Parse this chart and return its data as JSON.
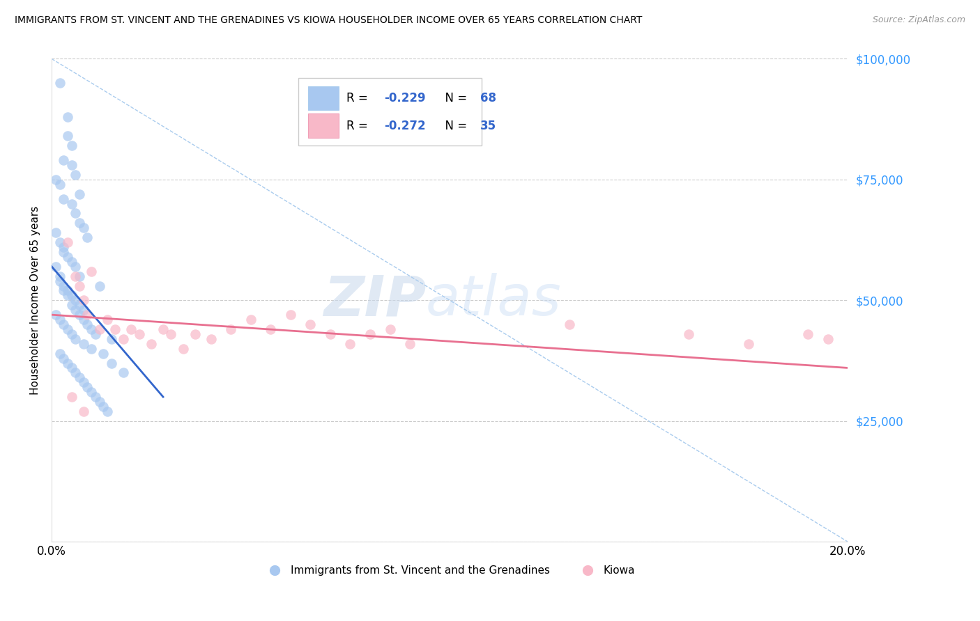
{
  "title": "IMMIGRANTS FROM ST. VINCENT AND THE GRENADINES VS KIOWA HOUSEHOLDER INCOME OVER 65 YEARS CORRELATION CHART",
  "source": "Source: ZipAtlas.com",
  "ylabel": "Householder Income Over 65 years",
  "x_min": 0.0,
  "x_max": 0.2,
  "y_min": 0,
  "y_max": 100000,
  "y_ticks": [
    0,
    25000,
    50000,
    75000,
    100000
  ],
  "y_tick_labels": [
    "",
    "$25,000",
    "$50,000",
    "$75,000",
    "$100,000"
  ],
  "x_ticks": [
    0.0,
    0.05,
    0.1,
    0.15,
    0.2
  ],
  "legend_blue_r": "-0.229",
  "legend_blue_n": "68",
  "legend_pink_r": "-0.272",
  "legend_pink_n": "35",
  "blue_color": "#A8C8F0",
  "pink_color": "#F8B8C8",
  "blue_line_color": "#3366CC",
  "pink_line_color": "#E87090",
  "diag_line_color": "#AACCEE",
  "watermark_zip": "ZIP",
  "watermark_atlas": "atlas",
  "blue_scatter_x": [
    0.002,
    0.004,
    0.004,
    0.005,
    0.003,
    0.006,
    0.005,
    0.007,
    0.001,
    0.002,
    0.003,
    0.005,
    0.006,
    0.008,
    0.007,
    0.009,
    0.001,
    0.002,
    0.003,
    0.003,
    0.004,
    0.005,
    0.006,
    0.007,
    0.001,
    0.002,
    0.003,
    0.004,
    0.005,
    0.006,
    0.007,
    0.008,
    0.002,
    0.003,
    0.004,
    0.005,
    0.006,
    0.007,
    0.008,
    0.009,
    0.001,
    0.002,
    0.003,
    0.004,
    0.005,
    0.006,
    0.008,
    0.01,
    0.012,
    0.015,
    0.01,
    0.011,
    0.013,
    0.015,
    0.018,
    0.002,
    0.003,
    0.004,
    0.005,
    0.006,
    0.007,
    0.008,
    0.009,
    0.01,
    0.011,
    0.012,
    0.013,
    0.014
  ],
  "blue_scatter_y": [
    95000,
    88000,
    84000,
    82000,
    79000,
    76000,
    78000,
    72000,
    75000,
    74000,
    71000,
    70000,
    68000,
    65000,
    66000,
    63000,
    64000,
    62000,
    60000,
    61000,
    59000,
    58000,
    57000,
    55000,
    57000,
    55000,
    53000,
    52000,
    51000,
    50000,
    49000,
    48000,
    54000,
    52000,
    51000,
    49000,
    48000,
    47000,
    46000,
    45000,
    47000,
    46000,
    45000,
    44000,
    43000,
    42000,
    41000,
    40000,
    53000,
    42000,
    44000,
    43000,
    39000,
    37000,
    35000,
    39000,
    38000,
    37000,
    36000,
    35000,
    34000,
    33000,
    32000,
    31000,
    30000,
    29000,
    28000,
    27000
  ],
  "pink_scatter_x": [
    0.004,
    0.006,
    0.007,
    0.008,
    0.009,
    0.01,
    0.012,
    0.014,
    0.016,
    0.018,
    0.02,
    0.022,
    0.025,
    0.028,
    0.03,
    0.033,
    0.036,
    0.04,
    0.045,
    0.05,
    0.055,
    0.06,
    0.065,
    0.07,
    0.075,
    0.08,
    0.085,
    0.09,
    0.005,
    0.008,
    0.13,
    0.16,
    0.175,
    0.19,
    0.195
  ],
  "pink_scatter_y": [
    62000,
    55000,
    53000,
    50000,
    47000,
    56000,
    44000,
    46000,
    44000,
    42000,
    44000,
    43000,
    41000,
    44000,
    43000,
    40000,
    43000,
    42000,
    44000,
    46000,
    44000,
    47000,
    45000,
    43000,
    41000,
    43000,
    44000,
    41000,
    30000,
    27000,
    45000,
    43000,
    41000,
    43000,
    42000
  ],
  "blue_line_x": [
    0.0,
    0.028
  ],
  "blue_line_y": [
    57000,
    30000
  ],
  "pink_line_x": [
    0.0,
    0.2
  ],
  "pink_line_y": [
    47000,
    36000
  ],
  "diag_line_x": [
    0.0,
    0.2
  ],
  "diag_line_y": [
    100000,
    0
  ]
}
